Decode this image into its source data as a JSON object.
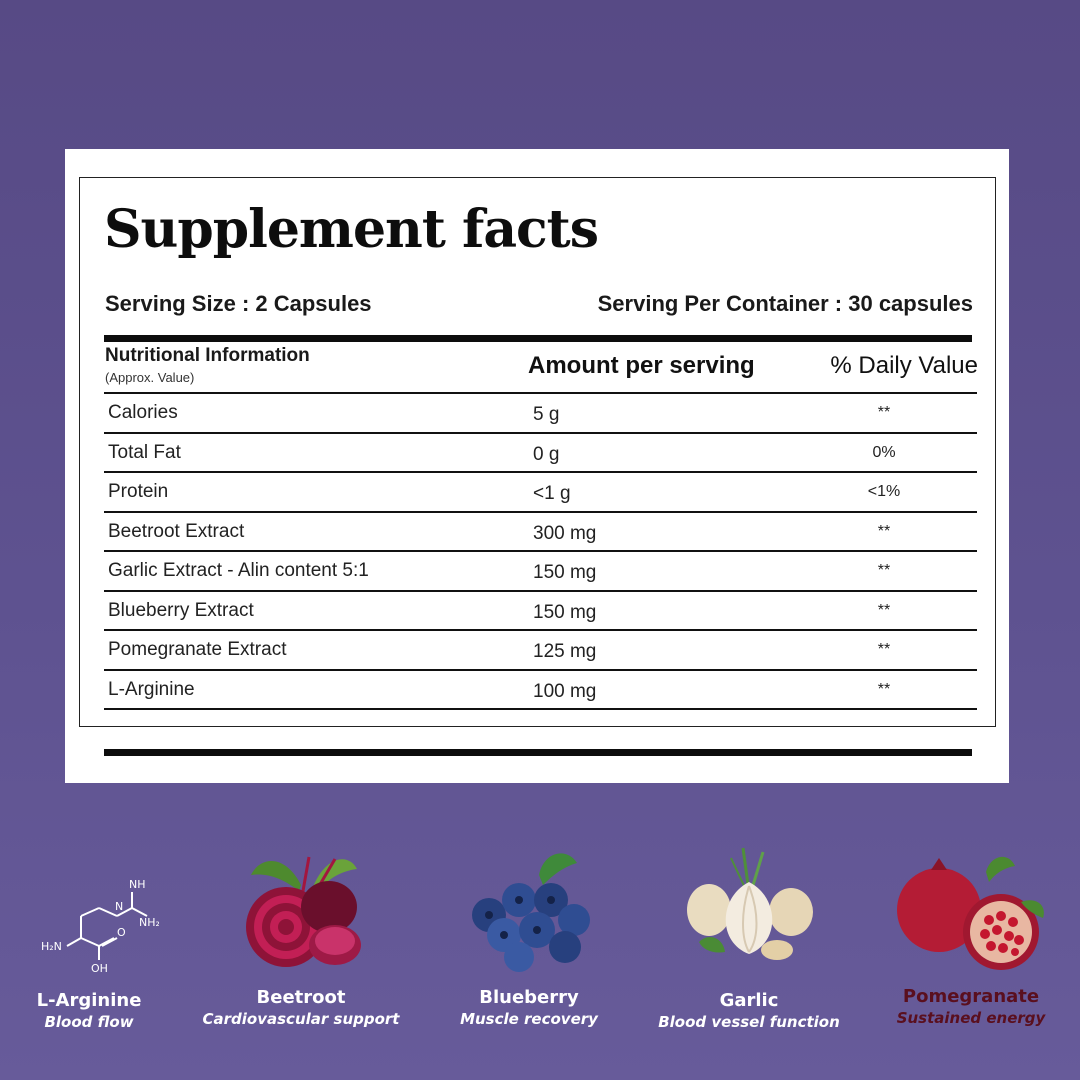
{
  "facts": {
    "title": "Supplement facts",
    "serving_size": "Serving Size : 2 Capsules",
    "serving_per_container": "Serving Per Container : 30 capsules",
    "nutritional_info_label": "Nutritional Information",
    "approx_label": "(Approx. Value)",
    "amount_header": "Amount per serving",
    "daily_value_header": "% Daily Value",
    "rows": [
      {
        "name": "Calories",
        "amount": "5 g",
        "dv": "**"
      },
      {
        "name": "Total Fat",
        "amount": "0 g",
        "dv": "0%"
      },
      {
        "name": "Protein",
        "amount": "<1 g",
        "dv": "<1%"
      },
      {
        "name": "Beetroot Extract",
        "amount": "300 mg",
        "dv": "**"
      },
      {
        "name": "Garlic Extract - Alin content 5:1",
        "amount": "150 mg",
        "dv": "**"
      },
      {
        "name": "Blueberry Extract",
        "amount": "150 mg",
        "dv": "**"
      },
      {
        "name": "Pomegranate Extract",
        "amount": "125 mg",
        "dv": "**"
      },
      {
        "name": "L-Arginine",
        "amount": "100 mg",
        "dv": "**"
      }
    ]
  },
  "ingredients": [
    {
      "name": "L-Arginine",
      "benefit": "Blood flow",
      "icon": "l-arginine-molecule-icon",
      "molecule_labels": [
        "H₂N",
        "NH",
        "NH₂",
        "O",
        "OH",
        "N"
      ]
    },
    {
      "name": "Beetroot",
      "benefit": "Cardiovascular support",
      "icon": "beetroot-image"
    },
    {
      "name": "Blueberry",
      "benefit": "Muscle recovery",
      "icon": "blueberry-image"
    },
    {
      "name": "Garlic",
      "benefit": "Blood vessel function",
      "icon": "garlic-image"
    },
    {
      "name": "Pomegranate",
      "benefit": "Sustained energy",
      "icon": "pomegranate-image"
    }
  ],
  "colors": {
    "background": "#5a4d8a",
    "panel": "#ffffff",
    "pomegranate_text": "#5a0f1e"
  }
}
